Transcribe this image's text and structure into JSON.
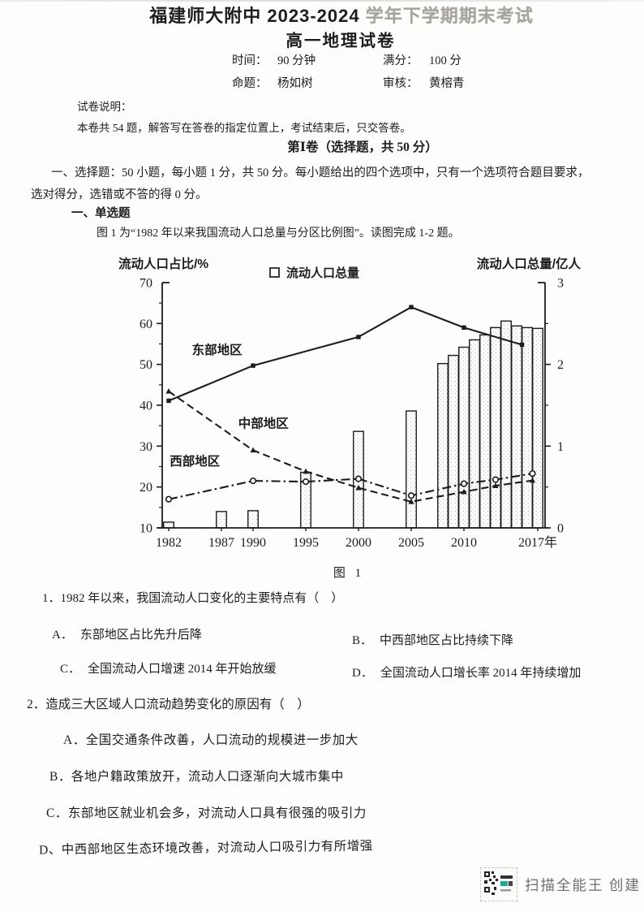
{
  "header": {
    "school_title_main": "福建师大附中 2023-2024 ",
    "school_title_faded": "学年下学期期末考试",
    "paper_title": "高一地理试卷",
    "info": {
      "time_label": "时间：",
      "time_value": "90 分钟",
      "full_score_label": "满分：",
      "full_score_value": "100 分",
      "setter_label": "命题：",
      "setter_value": "杨如树",
      "reviewer_label": "审核：",
      "reviewer_value": "黄榕青"
    }
  },
  "notes": {
    "title": "试卷说明：",
    "body": "本卷共 54 题，解答写在答卷的指定位置上，考试结束后，只交答卷。"
  },
  "section": {
    "title": "第Ⅰ卷（选择题，共 50 分）",
    "instruction_line1": "一、选择题：50 小题，每小题 1 分，共 50 分。每小题给出的四个选项中，只有一个选项符合题目要求，",
    "instruction_line2": "选对得分，选错或不答的得 0 分。",
    "subsection_title": "一、单选题",
    "stimulus": "图 1 为“1982 年以来我国流动人口总量与分区比例图”。读图完成 1-2 题。",
    "figure_caption": "图 1"
  },
  "questions": [
    {
      "number": "1．",
      "stem": "1982 年以来，我国流动人口变化的主要特点有（　）",
      "options": [
        {
          "label": "A．",
          "text": "东部地区占比先升后降"
        },
        {
          "label": "B．",
          "text": "中西部地区占比持续下降"
        },
        {
          "label": "C．",
          "text": "全国流动人口增速 2014 年开始放缓"
        },
        {
          "label": "D．",
          "text": "全国流动人口增长率 2014 年持续增加"
        }
      ]
    },
    {
      "number": "2．",
      "stem": "造成三大区域人口流动趋势变化的原因有（　）",
      "options": [
        {
          "label": "A．",
          "text": "全国交通条件改善，人口流动的规模进一步加大"
        },
        {
          "label": "B．",
          "text": "各地户籍政策放开，流动人口逐渐向大城市集中"
        },
        {
          "label": "C．",
          "text": "东部地区就业机会多，对流动人口具有很强的吸引力"
        },
        {
          "label": "D、",
          "text": "中西部地区生态环境改善，对流动人口吸引力有所增强"
        }
      ]
    }
  ],
  "watermark": {
    "text": "扫描全能王 创建"
  },
  "colors": {
    "ink": "#1c1c1c",
    "faded_title": "#a7a49e",
    "watermark_gray": "#6e6e6e",
    "logo_teal": "#1fa99d"
  },
  "chart_data": {
    "type": "combo-bar-line",
    "title": "图 1",
    "legend": {
      "label": "流动人口总量",
      "marker": "open-square",
      "position": "top-center"
    },
    "left_axis": {
      "label": "流动人口占比/%",
      "min": 10,
      "max": 70,
      "ticks": [
        10,
        20,
        30,
        40,
        50,
        60,
        70
      ],
      "minor_step": 5
    },
    "right_axis": {
      "label": "流动人口总量/亿人",
      "min": 0,
      "max": 3,
      "ticks": [
        0,
        1,
        2,
        3
      ],
      "minor_step": 0.5
    },
    "x_axis": {
      "min": 1982,
      "max": 2017,
      "tick_years": [
        1982,
        1987,
        1990,
        1995,
        2000,
        2005,
        2010,
        2017
      ],
      "tick_labels": [
        "1982",
        "1987",
        "1990",
        "1995",
        "2000",
        "2005",
        "2010",
        "2017年"
      ]
    },
    "bars": {
      "name": "流动人口总量",
      "axis": "right",
      "unit": "亿人",
      "years": [
        1982,
        1987,
        1990,
        1995,
        2000,
        2005,
        2008,
        2009,
        2010,
        2011,
        2012,
        2013,
        2014,
        2015,
        2016,
        2017
      ],
      "values": [
        0.07,
        0.2,
        0.21,
        0.68,
        1.18,
        1.43,
        2.01,
        2.11,
        2.21,
        2.3,
        2.36,
        2.45,
        2.53,
        2.47,
        2.45,
        2.44
      ]
    },
    "series": [
      {
        "id": "east",
        "name": "东部地区",
        "axis": "left",
        "style": "solid",
        "marker": "square",
        "points": [
          [
            1982,
            41.1
          ],
          [
            1990,
            49.7
          ],
          [
            2000,
            56.7
          ],
          [
            2005,
            64.0
          ],
          [
            2010,
            59.0
          ],
          [
            2015.5,
            54.8
          ]
        ],
        "label_pos": [
          1984.2,
          52.5
        ]
      },
      {
        "id": "central",
        "name": "中部地区",
        "axis": "left",
        "style": "dashed",
        "marker": "triangle",
        "points": [
          [
            1982,
            43.4
          ],
          [
            1990,
            29.0
          ],
          [
            1995,
            23.8
          ],
          [
            2000,
            19.8
          ],
          [
            2005,
            16.4
          ],
          [
            2010,
            18.8
          ],
          [
            2013,
            20.3
          ],
          [
            2016.5,
            21.6
          ]
        ],
        "label_pos": [
          1988.6,
          34.5
        ]
      },
      {
        "id": "west",
        "name": "西部地区",
        "axis": "left",
        "style": "dashdot",
        "marker": "circle",
        "points": [
          [
            1982,
            17.0
          ],
          [
            1990,
            21.5
          ],
          [
            1995,
            21.3
          ],
          [
            2000,
            22.0
          ],
          [
            2005,
            17.9
          ],
          [
            2010,
            20.8
          ],
          [
            2013,
            21.8
          ],
          [
            2016.5,
            23.3
          ]
        ],
        "label_pos": [
          1982.1,
          25.3
        ]
      }
    ]
  }
}
